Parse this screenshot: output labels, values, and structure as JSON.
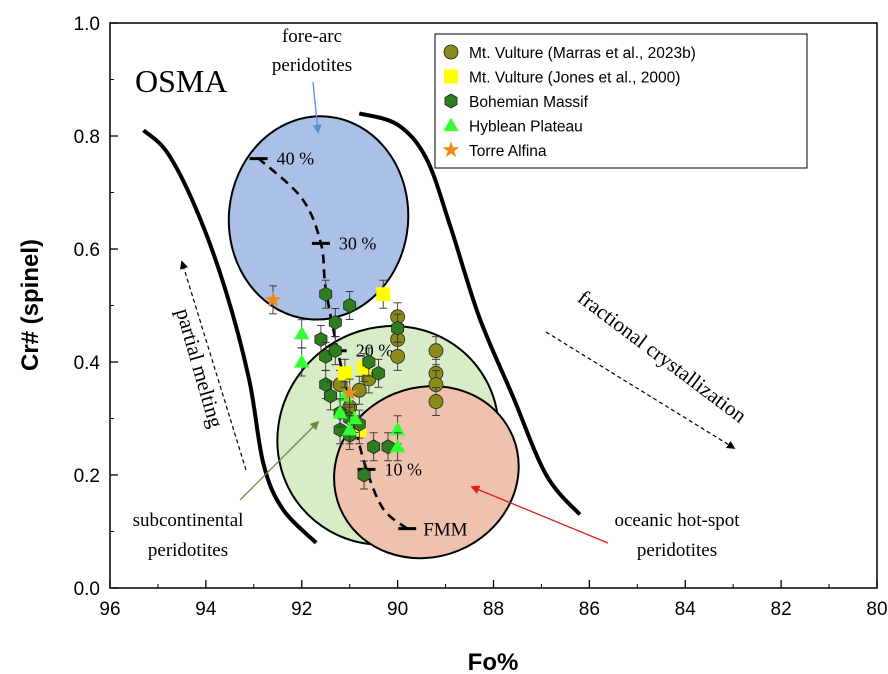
{
  "chart_data": {
    "type": "scatter",
    "title": "",
    "xlabel": "Fo%",
    "ylabel": "Cr# (spinel)",
    "xlim": [
      96,
      80
    ],
    "ylim": [
      0.0,
      1.0
    ],
    "x_ticks": [
      "96",
      "94",
      "92",
      "90",
      "88",
      "86",
      "84",
      "82",
      "80"
    ],
    "y_ticks": [
      "0.0",
      "0.2",
      "0.4",
      "0.6",
      "0.8",
      "1.0"
    ],
    "legend_position": "top-right",
    "annotations": {
      "osma": "OSMA",
      "forearc_line1": "fore-arc",
      "forearc_line2": "peridotites",
      "subcont_line1": "subcontinental",
      "subcont_line2": "peridotites",
      "oceanic_line1": "oceanic hot-spot",
      "oceanic_line2": "peridotites",
      "partial_melting": "partial melting",
      "fractional_crystallization": "fractional crystallization",
      "fmm": "FMM"
    },
    "melting_trend": {
      "points": [
        {
          "x": 89.8,
          "y": 0.105
        },
        {
          "x": 90.3,
          "y": 0.14
        },
        {
          "x": 90.65,
          "y": 0.21
        },
        {
          "x": 90.9,
          "y": 0.29
        },
        {
          "x": 91.25,
          "y": 0.42
        },
        {
          "x": 91.5,
          "y": 0.53
        },
        {
          "x": 91.6,
          "y": 0.61
        },
        {
          "x": 92.0,
          "y": 0.69
        },
        {
          "x": 92.9,
          "y": 0.76
        }
      ],
      "labels": [
        {
          "text": "40 %",
          "x": 92.9,
          "y": 0.76
        },
        {
          "text": "30 %",
          "x": 91.6,
          "y": 0.61
        },
        {
          "text": "20 %",
          "x": 91.25,
          "y": 0.42
        },
        {
          "text": "10 %",
          "x": 90.65,
          "y": 0.21
        }
      ]
    },
    "fields": [
      {
        "name": "fore-arc peridotites",
        "color": "#aac0e6",
        "cx": 91.65,
        "cy": 0.655,
        "rx_fo": 1.87,
        "ry_cr": 0.18,
        "angle": 5
      },
      {
        "name": "subcontinental peridotites",
        "color": "#d8ecc8",
        "cx": 90.2,
        "cy": 0.27,
        "rx_fo": 2.35,
        "ry_cr": 0.19,
        "angle": -38
      },
      {
        "name": "oceanic hot-spot peridotites",
        "color": "#efc2ad",
        "cx": 89.4,
        "cy": 0.205,
        "rx_fo": 1.95,
        "ry_cr": 0.15,
        "angle": -22
      }
    ],
    "osma_bounds": {
      "left": [
        {
          "x": 95.3,
          "y": 0.81
        },
        {
          "x": 94.8,
          "y": 0.77
        },
        {
          "x": 94.2,
          "y": 0.67
        },
        {
          "x": 93.6,
          "y": 0.53
        },
        {
          "x": 93.1,
          "y": 0.37
        },
        {
          "x": 92.8,
          "y": 0.22
        },
        {
          "x": 92.4,
          "y": 0.14
        },
        {
          "x": 91.7,
          "y": 0.08
        }
      ],
      "right": [
        {
          "x": 90.8,
          "y": 0.84
        },
        {
          "x": 90.0,
          "y": 0.82
        },
        {
          "x": 89.4,
          "y": 0.76
        },
        {
          "x": 88.9,
          "y": 0.64
        },
        {
          "x": 88.3,
          "y": 0.48
        },
        {
          "x": 87.6,
          "y": 0.34
        },
        {
          "x": 86.9,
          "y": 0.2
        },
        {
          "x": 86.2,
          "y": 0.13
        }
      ]
    },
    "series": [
      {
        "name": "Mt. Vulture (Marras et al., 2023b)",
        "color": "#8b8b1a",
        "marker": "circle",
        "points": [
          {
            "x": 89.2,
            "y": 0.42
          },
          {
            "x": 89.2,
            "y": 0.38
          },
          {
            "x": 89.2,
            "y": 0.36
          },
          {
            "x": 89.2,
            "y": 0.33
          },
          {
            "x": 90.0,
            "y": 0.48
          },
          {
            "x": 90.0,
            "y": 0.44
          },
          {
            "x": 90.0,
            "y": 0.41
          },
          {
            "x": 90.6,
            "y": 0.37
          },
          {
            "x": 90.8,
            "y": 0.35
          },
          {
            "x": 91.2,
            "y": 0.36
          },
          {
            "x": 91.0,
            "y": 0.32
          }
        ]
      },
      {
        "name": "Mt. Vulture (Jones et al., 2000)",
        "color": "#ffff00",
        "marker": "square",
        "points": [
          {
            "x": 90.3,
            "y": 0.52
          },
          {
            "x": 90.8,
            "y": 0.28
          },
          {
            "x": 90.7,
            "y": 0.39
          },
          {
            "x": 91.1,
            "y": 0.38
          }
        ]
      },
      {
        "name": "Bohemian Massif",
        "color": "#2e7d1e",
        "marker": "hexagon",
        "points": [
          {
            "x": 91.5,
            "y": 0.52
          },
          {
            "x": 91.3,
            "y": 0.47
          },
          {
            "x": 91.0,
            "y": 0.5
          },
          {
            "x": 91.6,
            "y": 0.44
          },
          {
            "x": 91.5,
            "y": 0.41
          },
          {
            "x": 91.3,
            "y": 0.42
          },
          {
            "x": 90.6,
            "y": 0.4
          },
          {
            "x": 90.4,
            "y": 0.38
          },
          {
            "x": 90.0,
            "y": 0.46
          },
          {
            "x": 91.5,
            "y": 0.36
          },
          {
            "x": 91.4,
            "y": 0.34
          },
          {
            "x": 91.2,
            "y": 0.31
          },
          {
            "x": 91.0,
            "y": 0.3
          },
          {
            "x": 91.2,
            "y": 0.28
          },
          {
            "x": 91.0,
            "y": 0.27
          },
          {
            "x": 90.8,
            "y": 0.29
          },
          {
            "x": 90.5,
            "y": 0.25
          },
          {
            "x": 90.2,
            "y": 0.25
          },
          {
            "x": 90.7,
            "y": 0.2
          }
        ]
      },
      {
        "name": "Hyblean Plateau",
        "color": "#33ff33",
        "marker": "triangle",
        "points": [
          {
            "x": 92.0,
            "y": 0.45
          },
          {
            "x": 92.0,
            "y": 0.4
          },
          {
            "x": 91.1,
            "y": 0.34
          },
          {
            "x": 91.2,
            "y": 0.31
          },
          {
            "x": 90.9,
            "y": 0.3
          },
          {
            "x": 91.0,
            "y": 0.28
          },
          {
            "x": 90.0,
            "y": 0.28
          },
          {
            "x": 90.0,
            "y": 0.25
          }
        ]
      },
      {
        "name": "Torre Alfina",
        "color": "#f08a1e",
        "marker": "star",
        "points": [
          {
            "x": 92.6,
            "y": 0.51
          },
          {
            "x": 91.0,
            "y": 0.345
          }
        ]
      }
    ]
  }
}
